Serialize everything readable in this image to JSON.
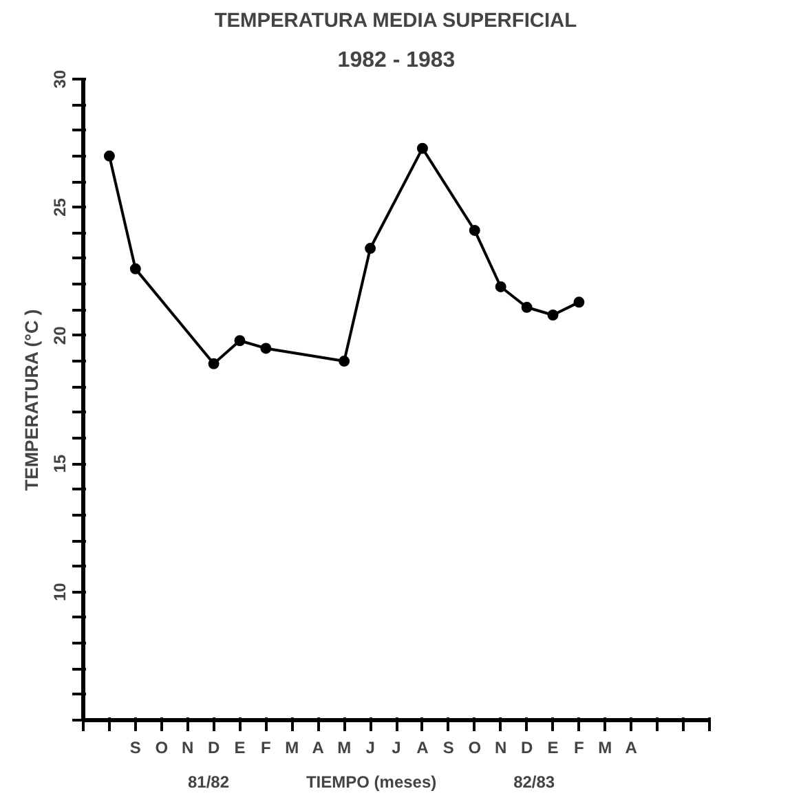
{
  "chart_data": {
    "type": "line",
    "title": "TEMPERATURA MEDIA SUPERFICIAL",
    "subtitle": "1982 - 1983",
    "xlabel": "TIEMPO (meses)",
    "ylabel": "TEMPERATURA (°C )",
    "categories": [
      null,
      null,
      "S",
      "O",
      "N",
      "D",
      "E",
      "F",
      "M",
      "A",
      "M",
      "J",
      "J",
      "A",
      "S",
      "O",
      "N",
      "D",
      "E",
      "F",
      "M",
      "A",
      null,
      null,
      null
    ],
    "series": [
      {
        "color": "#000000",
        "values": [
          null,
          27.0,
          22.6,
          null,
          null,
          18.9,
          19.8,
          19.5,
          null,
          null,
          19.0,
          23.4,
          null,
          27.3,
          null,
          24.1,
          21.9,
          21.1,
          20.8,
          21.3,
          null,
          null,
          null,
          null,
          null
        ]
      }
    ],
    "ylim": [
      5,
      30
    ],
    "yticks": [
      {
        "value": 5,
        "label": null
      },
      {
        "value": 6,
        "label": null
      },
      {
        "value": 7,
        "label": null
      },
      {
        "value": 8,
        "label": null
      },
      {
        "value": 9,
        "label": null
      },
      10,
      {
        "value": 11,
        "label": null
      },
      {
        "value": 12,
        "label": null
      },
      {
        "value": 13,
        "label": null
      },
      {
        "value": 14,
        "label": null
      },
      15,
      {
        "value": 16,
        "label": null
      },
      {
        "value": 17,
        "label": null
      },
      {
        "value": 18,
        "label": null
      },
      {
        "value": 19,
        "label": null
      },
      20,
      {
        "value": 21,
        "label": null
      },
      {
        "value": 22,
        "label": null
      },
      {
        "value": 23,
        "label": null
      },
      {
        "value": 24,
        "label": null
      },
      25,
      {
        "value": 26,
        "label": null
      },
      {
        "value": 27,
        "label": null
      },
      {
        "value": 28,
        "label": null
      },
      {
        "value": 29,
        "label": null
      },
      30
    ],
    "annotations": [
      "81/82",
      "82/83"
    ],
    "marker": "circle",
    "line_style": "solid",
    "grid": false
  }
}
